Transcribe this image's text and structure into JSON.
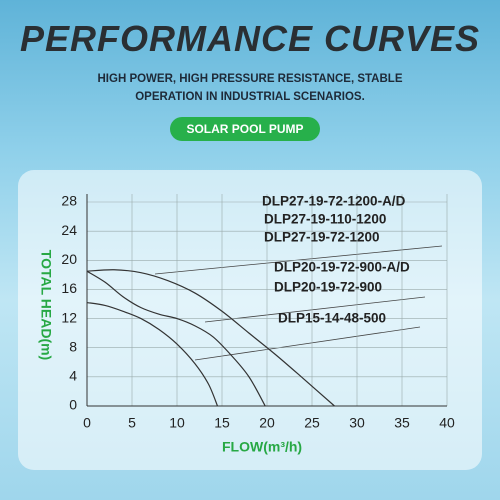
{
  "chart_data": {
    "type": "line",
    "title": "PERFORMANCE CURVES",
    "subtitle": "HIGH POWER, HIGH PRESSURE RESISTANCE, STABLE OPERATION IN INDUSTRIAL SCENARIOS.",
    "badge": "SOLAR POOL PUMP",
    "x_label": "FLOW(m³/h)",
    "y_label": "TOTAL HEAD(m)",
    "xlim": [
      0,
      40
    ],
    "xticks": [
      0,
      5,
      10,
      15,
      20,
      25,
      30,
      35,
      40
    ],
    "ylim": [
      0,
      28
    ],
    "yticks": [
      0,
      4,
      8,
      12,
      16,
      20,
      24,
      28
    ],
    "grid": true,
    "annotations": [
      "DLP27-19-72-1200-A/D",
      "DLP27-19-110-1200",
      "DLP27-19-72-1200",
      "DLP20-19-72-900-A/D",
      "DLP20-19-72-900",
      "DLP15-14-48-500"
    ],
    "series": [
      {
        "color": "#333333",
        "x": [
          0,
          3,
          6,
          9,
          12,
          15,
          18,
          21,
          24,
          27.5
        ],
        "values": [
          18.5,
          18.7,
          18.3,
          17.2,
          15.5,
          13,
          10,
          7,
          3.8,
          0
        ]
      },
      {
        "color": "#333333",
        "x": [
          0,
          2,
          4,
          6,
          8,
          10,
          12,
          14,
          16,
          18,
          19.8
        ],
        "values": [
          18.5,
          17,
          15,
          13.5,
          12.6,
          12,
          11,
          9.5,
          7,
          4,
          0
        ]
      },
      {
        "color": "#333333",
        "x": [
          0,
          2,
          4,
          6,
          8,
          10,
          12,
          13.5,
          14.5
        ],
        "values": [
          14.2,
          13.8,
          13,
          12,
          10.5,
          8.5,
          5.8,
          3,
          0
        ]
      }
    ]
  }
}
